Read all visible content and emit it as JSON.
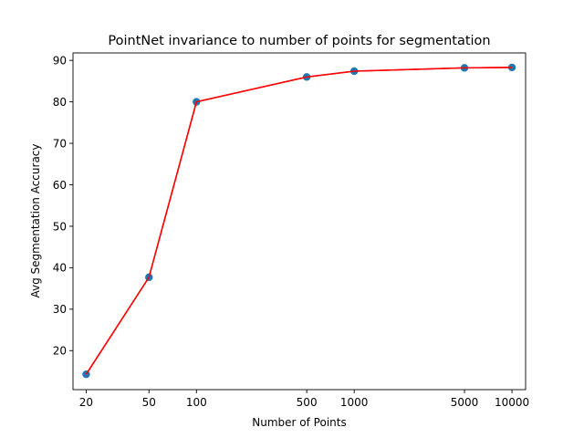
{
  "chart_data": {
    "type": "line",
    "title": "PointNet invariance to number of points for segmentation",
    "xlabel": "Number of Points",
    "ylabel": "Avg Segmentation Accuracy",
    "xscale": "log",
    "xticks": [
      20,
      50,
      100,
      500,
      1000,
      5000,
      10000
    ],
    "xtick_labels": [
      "20",
      "50",
      "100",
      "500",
      "1000",
      "5000",
      "10000"
    ],
    "yticks": [
      20,
      30,
      40,
      50,
      60,
      70,
      80,
      90
    ],
    "xlim": [
      16.5,
      12200
    ],
    "ylim": [
      10.6,
      91.8
    ],
    "grid": false,
    "legend": "none",
    "series": [
      {
        "x": [
          20,
          50,
          100,
          500,
          1000,
          5000,
          10000
        ],
        "y": [
          14.3,
          37.7,
          80.0,
          86.0,
          87.4,
          88.2,
          88.3
        ],
        "line_color": "#ff0000",
        "marker_color": "#1f77b4"
      }
    ]
  }
}
